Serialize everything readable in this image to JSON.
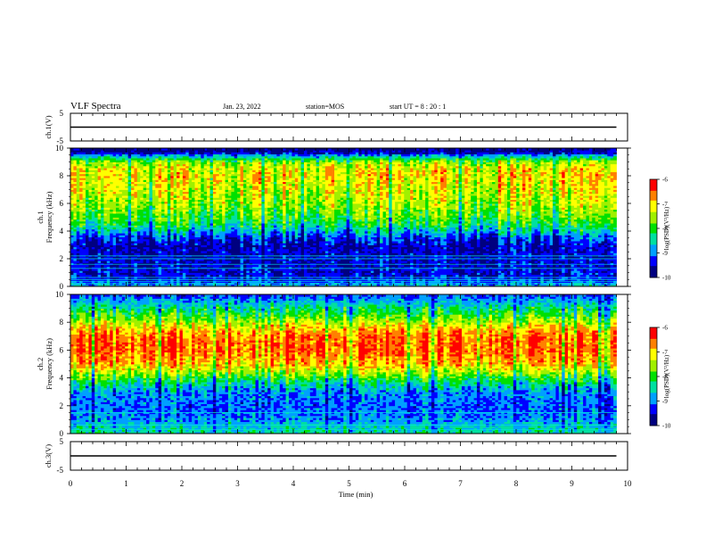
{
  "header": {
    "title": "VLF Spectra",
    "date": "Jan. 23, 2022",
    "station": "station=MOS",
    "start_ut": "start UT =   8 : 20 : 1"
  },
  "chart_data": [
    {
      "type": "line",
      "ylabel": "ch.1(V)",
      "xlim": [
        0,
        10
      ],
      "ylim": [
        -5,
        5
      ],
      "yticks": [
        "5",
        "-5"
      ],
      "series": [
        {
          "x": [
            0,
            9.8
          ],
          "y": [
            0,
            0
          ]
        }
      ]
    },
    {
      "type": "heatmap",
      "ylabel": "ch.1\nFrequency (kHz)",
      "xlim": [
        0,
        10
      ],
      "ylim": [
        0,
        10
      ],
      "yticks": [
        "0",
        "2",
        "4",
        "6",
        "8",
        "10"
      ],
      "data_extent_min": 9.8,
      "colorbar": {
        "label": "log(PSD)(V²/Hz)",
        "range": [
          -10,
          -6
        ],
        "ticks": [
          "-6",
          "-7",
          "-8",
          "-9",
          "-10"
        ]
      },
      "spectral_profile": {
        "frequency_khz": [
          0,
          0.5,
          1,
          2,
          3,
          3.5,
          4,
          4.5,
          5,
          5.5,
          6,
          7,
          8,
          8.5,
          9,
          9.4,
          9.7,
          10
        ],
        "log_psd": [
          -8.6,
          -9.3,
          -9.4,
          -9.5,
          -9.5,
          -9.2,
          -8.6,
          -8.1,
          -7.8,
          -7.6,
          -7.4,
          -7.2,
          -7.0,
          -7.1,
          -7.5,
          -8.6,
          -9.6,
          -9.8
        ]
      },
      "lines_khz": [
        0.2,
        0.35,
        0.5,
        0.65,
        1.3,
        1.6,
        2.0,
        2.2
      ]
    },
    {
      "type": "heatmap",
      "ylabel": "ch.2\nFrequency (kHz)",
      "xlim": [
        0,
        10
      ],
      "ylim": [
        0,
        10
      ],
      "yticks": [
        "0",
        "2",
        "4",
        "6",
        "8",
        "10"
      ],
      "data_extent_min": 9.8,
      "colorbar": {
        "label": "log(PSD)(V²/Hz)",
        "range": [
          -10,
          -6
        ],
        "ticks": [
          "-6",
          "-7",
          "-8",
          "-9",
          "-10"
        ]
      },
      "spectral_profile": {
        "frequency_khz": [
          0,
          0.5,
          1,
          2,
          3,
          3.5,
          4,
          4.5,
          5,
          6,
          7,
          7.5,
          8,
          8.5,
          9,
          9.5,
          10
        ],
        "log_psd": [
          -8.4,
          -8.6,
          -8.9,
          -9.1,
          -8.9,
          -8.5,
          -8.0,
          -7.4,
          -6.9,
          -6.5,
          -6.6,
          -6.9,
          -7.4,
          -7.9,
          -8.3,
          -8.8,
          -9.2
        ]
      },
      "lines_khz": [
        0.3,
        0.6,
        1.5
      ]
    },
    {
      "type": "line",
      "ylabel": "ch.3(V)",
      "xlim": [
        0,
        10
      ],
      "ylim": [
        -5,
        5
      ],
      "yticks": [
        "5",
        "-5"
      ],
      "series": [
        {
          "x": [
            0,
            9.8
          ],
          "y": [
            0,
            0
          ]
        }
      ]
    }
  ],
  "xaxis": {
    "label": "Time (min)",
    "ticks": [
      "0",
      "1",
      "2",
      "3",
      "4",
      "5",
      "6",
      "7",
      "8",
      "9",
      "10"
    ]
  },
  "colormap": [
    "#000080",
    "#0000ff",
    "#00a0ff",
    "#00e0a0",
    "#00e000",
    "#a0f000",
    "#ffff00",
    "#ff8000",
    "#ff0000",
    "#ffffff"
  ]
}
